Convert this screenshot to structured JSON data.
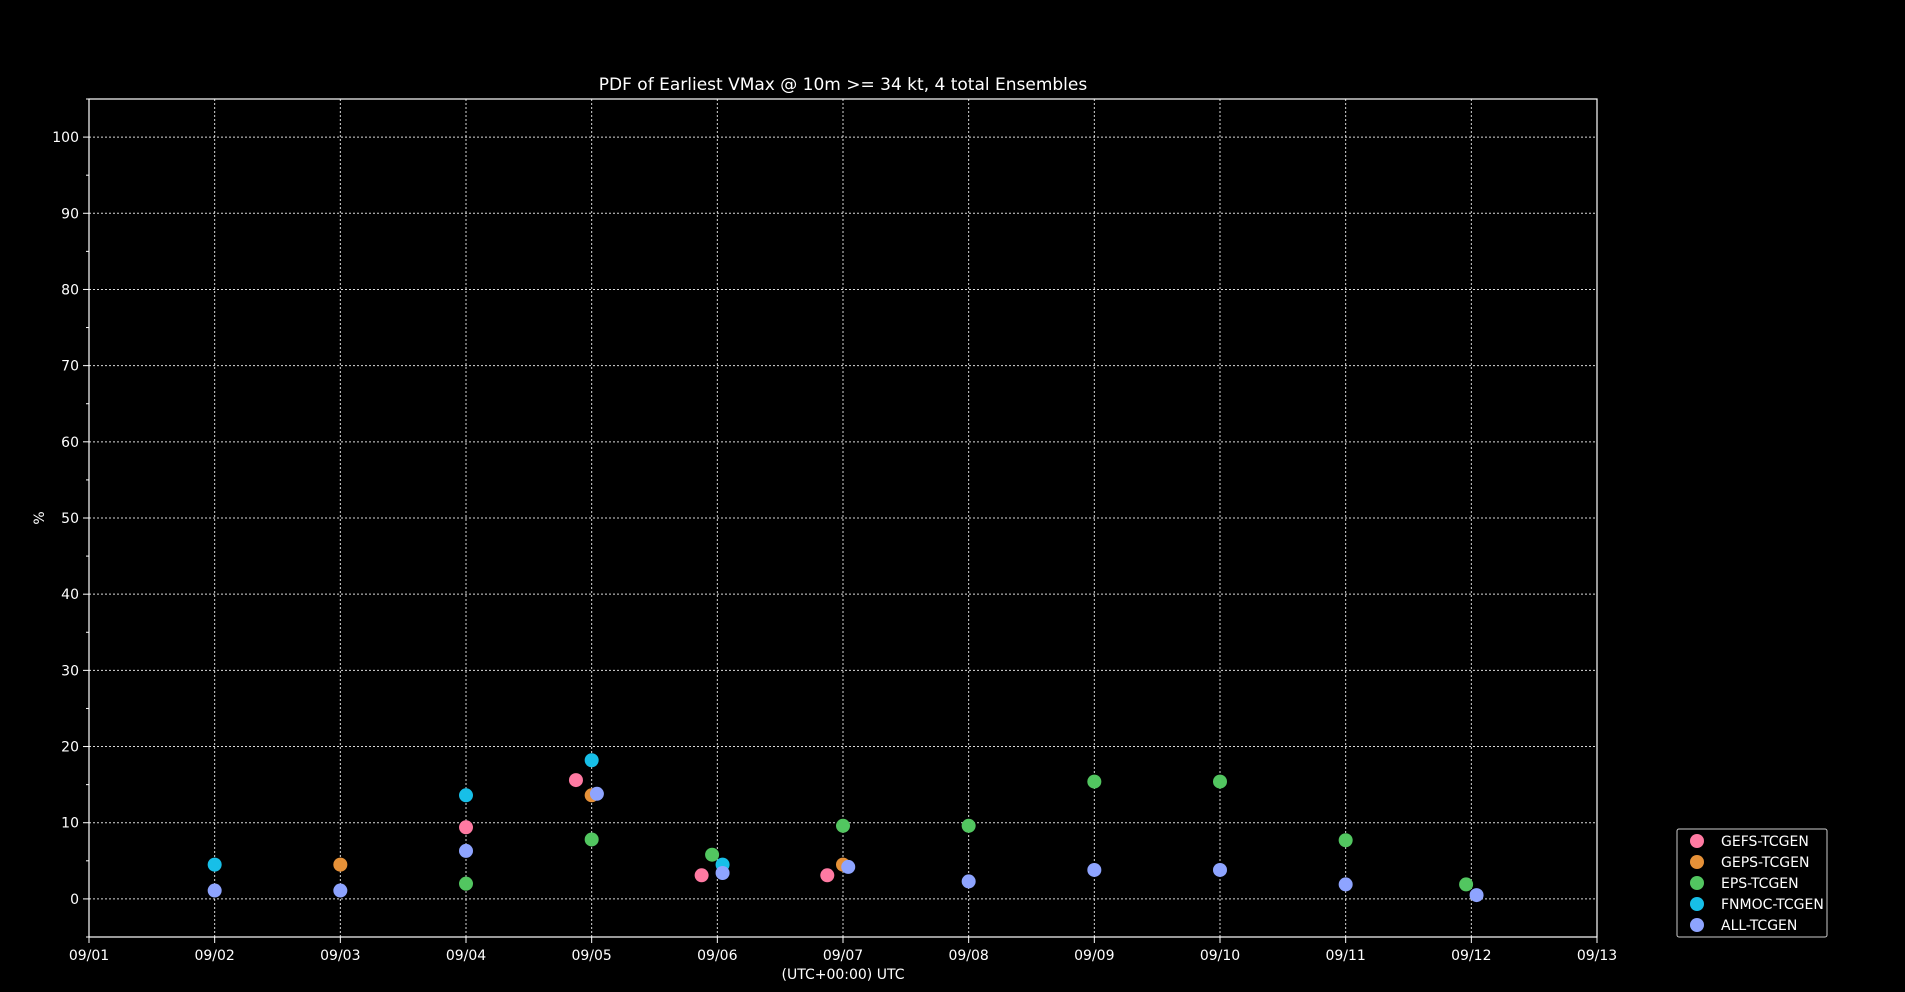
{
  "chart_data": {
    "type": "scatter",
    "title": "PDF of Earliest VMax @ 10m >= 34 kt, 4 total Ensembles",
    "xlabel": "(UTC+00:00) UTC",
    "ylabel": "%",
    "xlim": [
      "09/01",
      "09/13"
    ],
    "ylim": [
      -5,
      105
    ],
    "x_ticks": [
      "09/01",
      "09/02",
      "09/03",
      "09/04",
      "09/05",
      "09/06",
      "09/07",
      "09/08",
      "09/09",
      "09/10",
      "09/11",
      "09/12",
      "09/13"
    ],
    "y_ticks": [
      0,
      10,
      20,
      30,
      40,
      50,
      60,
      70,
      80,
      90,
      100
    ],
    "grid": true,
    "legend_position": "outside-bottom-right",
    "series": [
      {
        "name": "GEFS-TCGEN",
        "color": "#ff7aa2",
        "points": [
          [
            "09/04",
            9.4
          ],
          [
            "09/04 21:00",
            15.6
          ],
          [
            "09/05 21:00",
            3.1
          ],
          [
            "09/06 21:00",
            3.1
          ]
        ]
      },
      {
        "name": "GEPS-TCGEN",
        "color": "#e69138",
        "points": [
          [
            "09/03",
            4.5
          ],
          [
            "09/05",
            13.6
          ],
          [
            "09/07",
            4.5
          ]
        ]
      },
      {
        "name": "EPS-TCGEN",
        "color": "#52c660",
        "points": [
          [
            "09/04",
            2.0
          ],
          [
            "09/05",
            7.8
          ],
          [
            "09/05 23:00",
            5.8
          ],
          [
            "09/07",
            9.6
          ],
          [
            "09/08",
            9.6
          ],
          [
            "09/09",
            15.4
          ],
          [
            "09/10",
            15.4
          ],
          [
            "09/11",
            7.7
          ],
          [
            "09/11 23:00",
            1.9
          ]
        ]
      },
      {
        "name": "FNMOC-TCGEN",
        "color": "#17bfe8",
        "points": [
          [
            "09/02",
            4.5
          ],
          [
            "09/04",
            13.6
          ],
          [
            "09/05",
            18.2
          ],
          [
            "09/06 01:00",
            4.5
          ]
        ]
      },
      {
        "name": "ALL-TCGEN",
        "color": "#8ea4ff",
        "points": [
          [
            "09/02",
            1.1
          ],
          [
            "09/03",
            1.1
          ],
          [
            "09/04",
            6.3
          ],
          [
            "09/05 01:00",
            13.8
          ],
          [
            "09/06 01:00",
            3.4
          ],
          [
            "09/07 01:00",
            4.2
          ],
          [
            "09/08",
            2.3
          ],
          [
            "09/09",
            3.8
          ],
          [
            "09/10",
            3.8
          ],
          [
            "09/11",
            1.9
          ],
          [
            "09/12 01:00",
            0.5
          ]
        ]
      }
    ]
  }
}
